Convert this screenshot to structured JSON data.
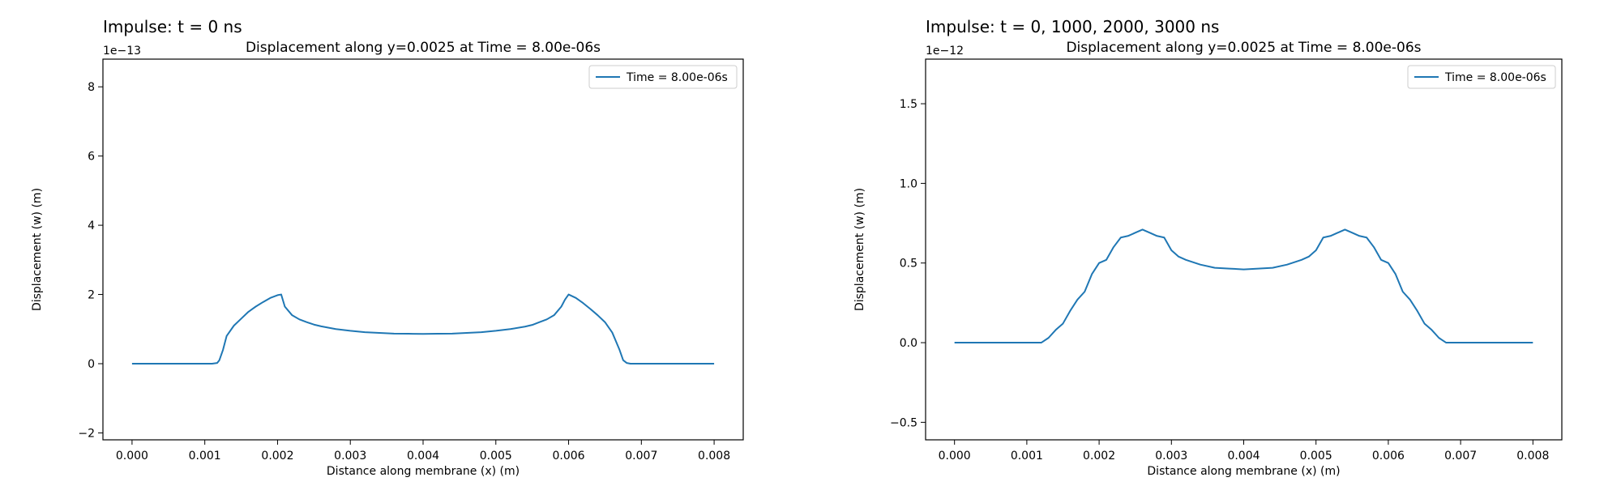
{
  "colors": {
    "series": "#1f77b4",
    "axes": "#000000",
    "legend_border": "#cccccc"
  },
  "chart_data": [
    {
      "type": "line",
      "suptitle": "Impulse: t = 0 ns",
      "title": "Displacement along y=0.0025 at Time = 8.00e-06s",
      "xlabel": "Distance along membrane (x) (m)",
      "ylabel": "Displacement (w) (m)",
      "y_offset_label": "1e−13",
      "y_scale": 1e-13,
      "xlim": [
        -0.0004,
        0.0084
      ],
      "ylim": [
        -2.2,
        8.8
      ],
      "xticks": [
        0.0,
        0.001,
        0.002,
        0.003,
        0.004,
        0.005,
        0.006,
        0.007,
        0.008
      ],
      "xtick_labels": [
        "0.000",
        "0.001",
        "0.002",
        "0.003",
        "0.004",
        "0.005",
        "0.006",
        "0.007",
        "0.008"
      ],
      "yticks": [
        -2,
        0,
        2,
        4,
        6,
        8
      ],
      "ytick_labels": [
        "−2",
        "0",
        "2",
        "4",
        "6",
        "8"
      ],
      "legend_position": "upper-right",
      "grid": false,
      "series": [
        {
          "name": "Time = 8.00e-06s",
          "x": [
            0.0,
            0.0005,
            0.001,
            0.0011,
            0.00117,
            0.0012,
            0.00125,
            0.0013,
            0.0014,
            0.0015,
            0.0016,
            0.0017,
            0.0018,
            0.0019,
            0.002,
            0.00205,
            0.0021,
            0.0022,
            0.0023,
            0.0024,
            0.0025,
            0.0026,
            0.0028,
            0.003,
            0.0032,
            0.0034,
            0.0036,
            0.0038,
            0.004,
            0.0042,
            0.0044,
            0.0046,
            0.0048,
            0.005,
            0.0052,
            0.0054,
            0.0055,
            0.0056,
            0.0057,
            0.0058,
            0.0059,
            0.00595,
            0.006,
            0.0061,
            0.0062,
            0.0063,
            0.0064,
            0.0065,
            0.0066,
            0.0067,
            0.00675,
            0.0068,
            0.00685,
            0.007,
            0.0075,
            0.008
          ],
          "y": [
            0,
            0,
            0,
            0,
            0.02,
            0.1,
            0.4,
            0.8,
            1.1,
            1.3,
            1.5,
            1.65,
            1.78,
            1.9,
            1.98,
            2.0,
            1.65,
            1.4,
            1.28,
            1.2,
            1.13,
            1.08,
            1.0,
            0.95,
            0.91,
            0.89,
            0.87,
            0.865,
            0.86,
            0.865,
            0.87,
            0.89,
            0.91,
            0.95,
            1.0,
            1.07,
            1.12,
            1.2,
            1.28,
            1.4,
            1.65,
            1.85,
            2.0,
            1.9,
            1.75,
            1.58,
            1.4,
            1.2,
            0.9,
            0.4,
            0.1,
            0.02,
            0,
            0,
            0,
            0
          ]
        }
      ]
    },
    {
      "type": "line",
      "suptitle": "Impulse: t = 0, 1000, 2000, 3000 ns",
      "title": "Displacement along y=0.0025 at Time = 8.00e-06s",
      "xlabel": "Distance along membrane (x) (m)",
      "ylabel": "Displacement (w) (m)",
      "y_offset_label": "1e−12",
      "y_scale": 1e-12,
      "xlim": [
        -0.0004,
        0.0084
      ],
      "ylim": [
        -0.61,
        1.78
      ],
      "xticks": [
        0.0,
        0.001,
        0.002,
        0.003,
        0.004,
        0.005,
        0.006,
        0.007,
        0.008
      ],
      "xtick_labels": [
        "0.000",
        "0.001",
        "0.002",
        "0.003",
        "0.004",
        "0.005",
        "0.006",
        "0.007",
        "0.008"
      ],
      "yticks": [
        -0.5,
        0.0,
        0.5,
        1.0,
        1.5
      ],
      "ytick_labels": [
        "−0.5",
        "0.0",
        "0.5",
        "1.0",
        "1.5"
      ],
      "legend_position": "upper-right",
      "grid": false,
      "series": [
        {
          "name": "Time = 8.00e-06s",
          "x": [
            0.0,
            0.0005,
            0.001,
            0.0012,
            0.0013,
            0.0014,
            0.0015,
            0.0016,
            0.0017,
            0.0018,
            0.0019,
            0.002,
            0.0021,
            0.0022,
            0.0023,
            0.0024,
            0.0025,
            0.0026,
            0.0027,
            0.0028,
            0.0029,
            0.003,
            0.0031,
            0.0032,
            0.0034,
            0.0036,
            0.0038,
            0.004,
            0.0042,
            0.0044,
            0.0046,
            0.0048,
            0.0049,
            0.005,
            0.0051,
            0.0052,
            0.0053,
            0.0054,
            0.0055,
            0.0056,
            0.0057,
            0.0058,
            0.0059,
            0.006,
            0.0061,
            0.0062,
            0.0063,
            0.0064,
            0.0065,
            0.0066,
            0.0067,
            0.0068,
            0.007,
            0.0075,
            0.008
          ],
          "y": [
            0,
            0,
            0,
            0,
            0.03,
            0.08,
            0.12,
            0.2,
            0.27,
            0.32,
            0.43,
            0.5,
            0.52,
            0.6,
            0.66,
            0.67,
            0.69,
            0.71,
            0.69,
            0.67,
            0.66,
            0.58,
            0.54,
            0.52,
            0.49,
            0.47,
            0.465,
            0.46,
            0.465,
            0.47,
            0.49,
            0.52,
            0.54,
            0.58,
            0.66,
            0.67,
            0.69,
            0.71,
            0.69,
            0.67,
            0.66,
            0.6,
            0.52,
            0.5,
            0.43,
            0.32,
            0.27,
            0.2,
            0.12,
            0.08,
            0.03,
            0.0,
            0,
            0,
            0
          ]
        }
      ]
    }
  ]
}
